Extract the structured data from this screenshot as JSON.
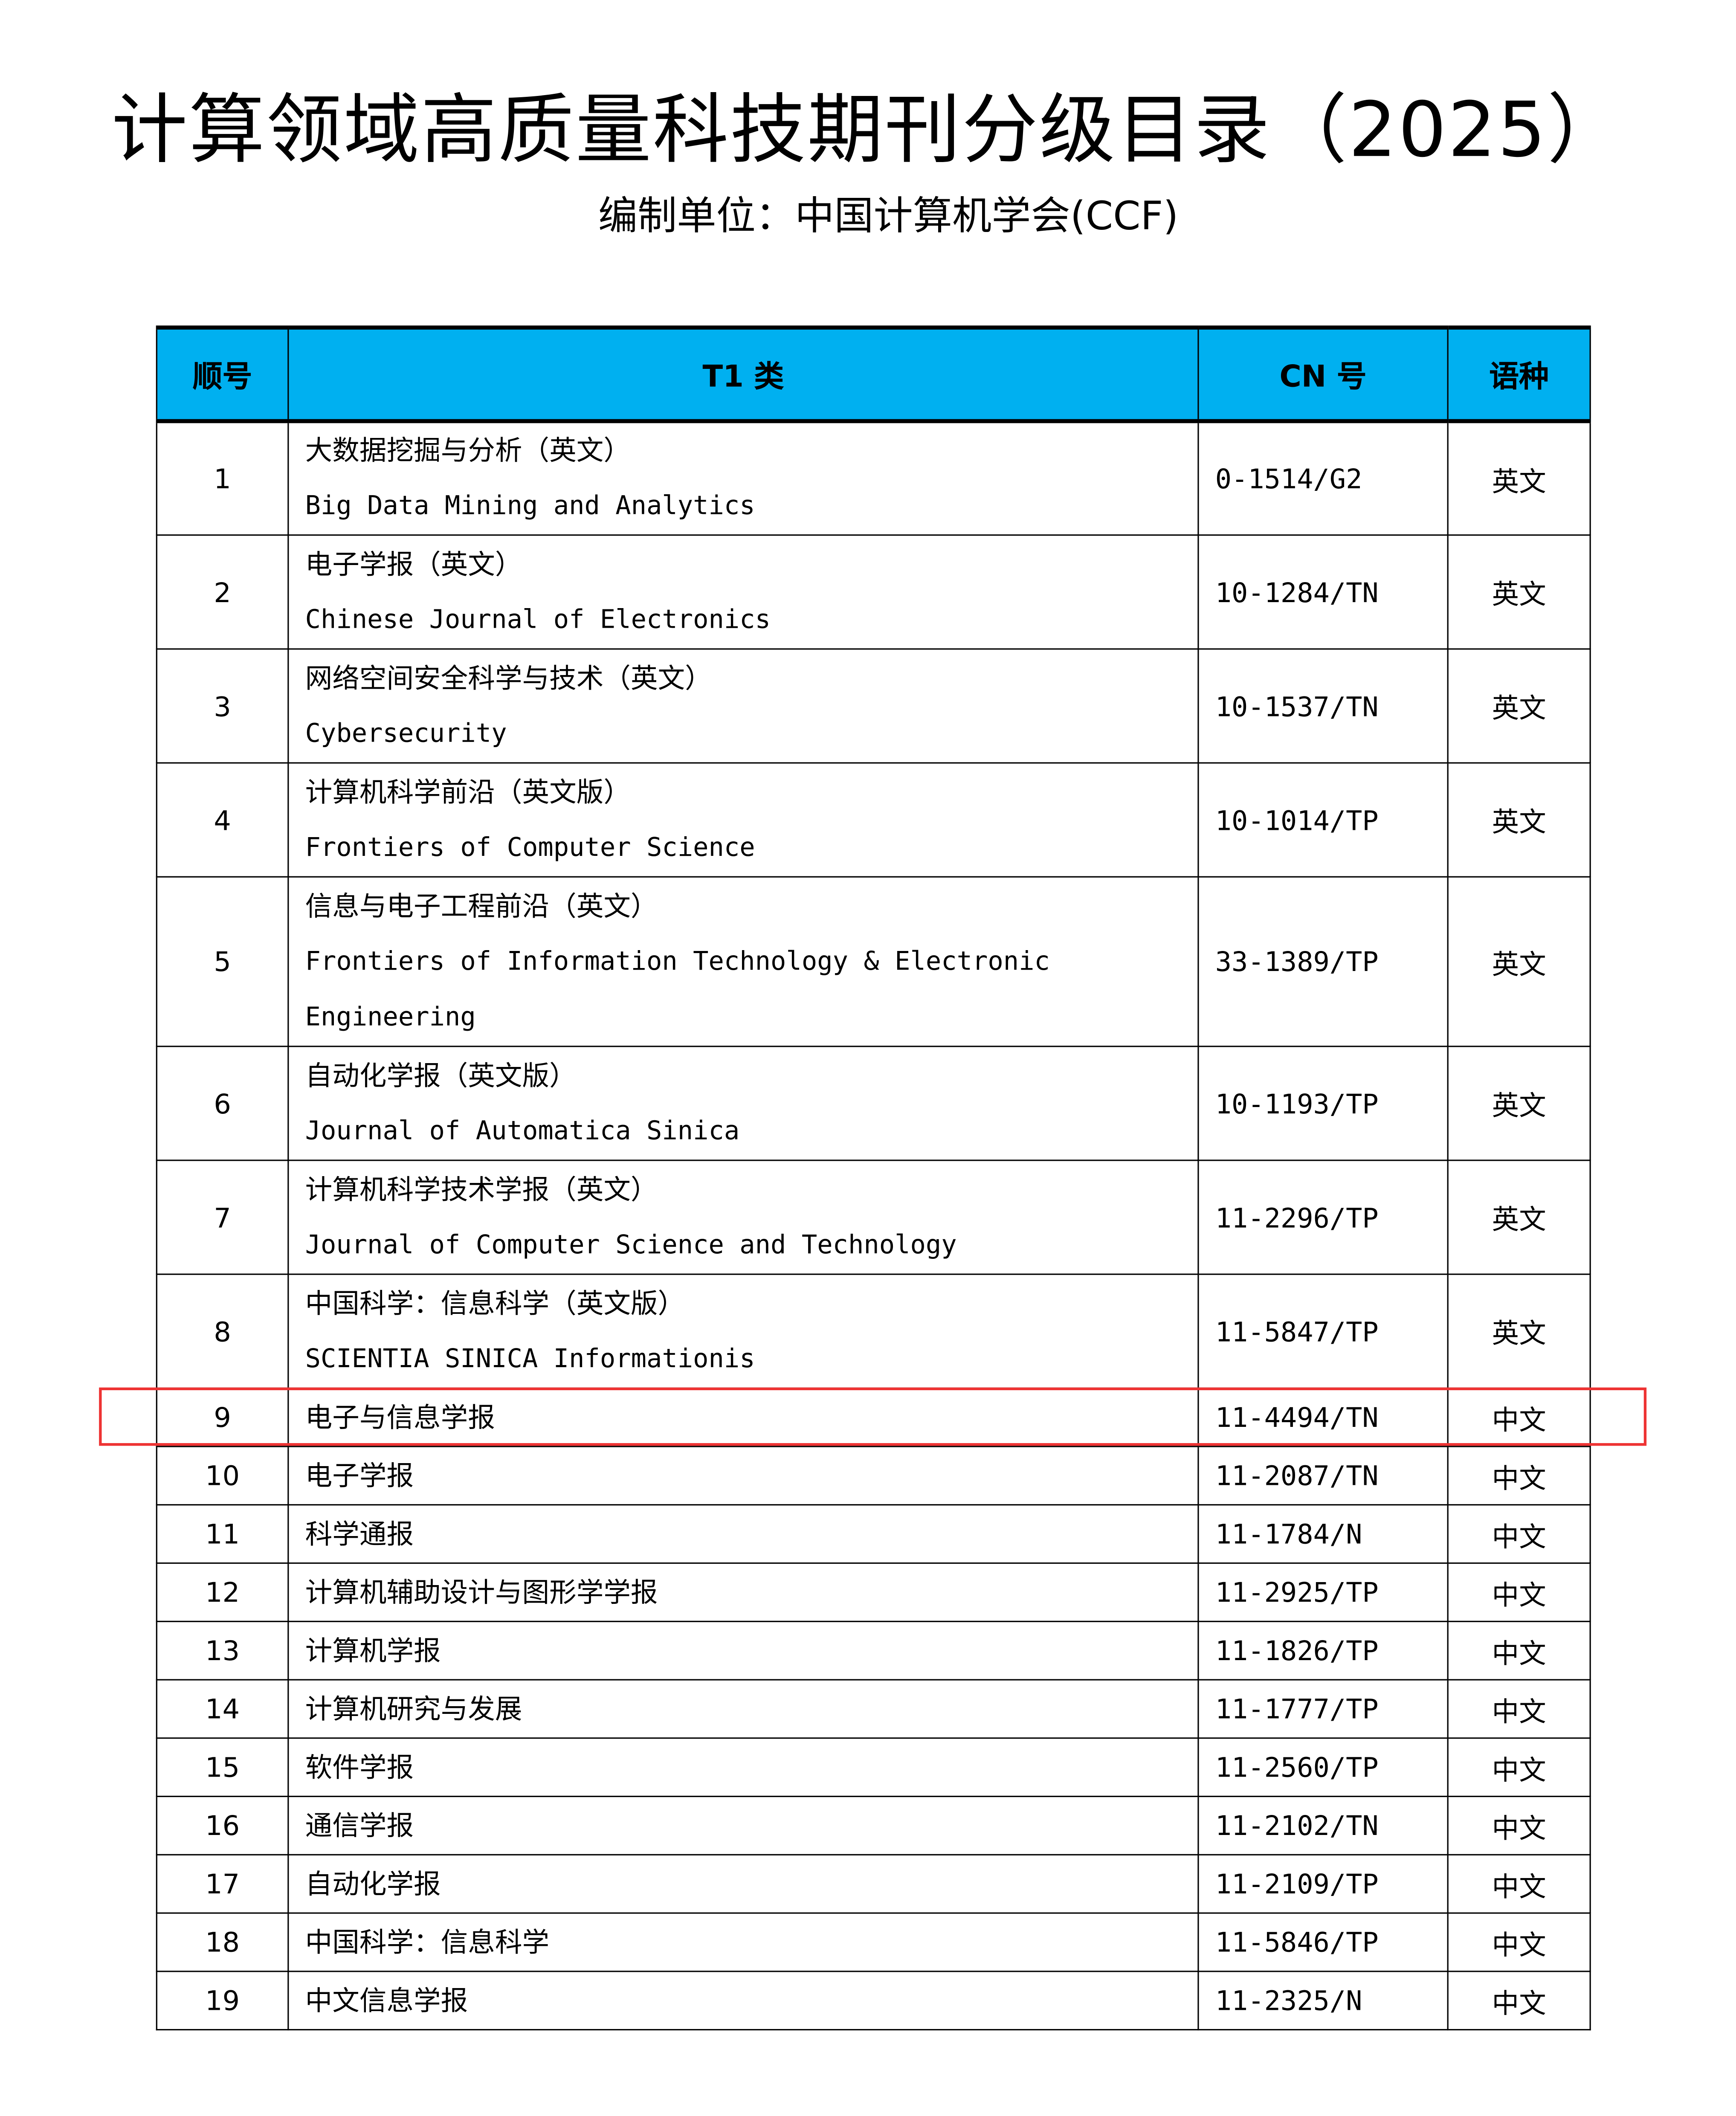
{
  "title": "计算领域高质量科技期刊分级目录（2025）",
  "subtitle": "编制单位：中国计算机学会(CCF)",
  "table": {
    "header_color": "#00b0f0",
    "columns": [
      "顺号",
      "T1 类",
      "CN 号",
      "语种"
    ],
    "highlight_color": "#ee3333",
    "highlighted_row": "9",
    "rows": [
      {
        "no": "1",
        "zh": "大数据挖掘与分析（英文）",
        "en": "Big Data Mining and Analytics",
        "cn": "0-1514/G2",
        "lang": "英文"
      },
      {
        "no": "2",
        "zh": "电子学报（英文）",
        "en": "Chinese Journal of Electronics",
        "cn": "10-1284/TN",
        "lang": "英文"
      },
      {
        "no": "3",
        "zh": "网络空间安全科学与技术（英文）",
        "en": "Cybersecurity",
        "cn": "10-1537/TN",
        "lang": "英文"
      },
      {
        "no": "4",
        "zh": "计算机科学前沿（英文版）",
        "en": "Frontiers of Computer Science",
        "cn": "10-1014/TP",
        "lang": "英文"
      },
      {
        "no": "5",
        "zh": "信息与电子工程前沿（英文）",
        "en": "Frontiers of Information Technology & Electronic Engineering",
        "cn": "33-1389/TP",
        "lang": "英文"
      },
      {
        "no": "6",
        "zh": "自动化学报（英文版）",
        "en": "Journal of Automatica Sinica",
        "cn": "10-1193/TP",
        "lang": "英文"
      },
      {
        "no": "7",
        "zh": "计算机科学技术学报（英文）",
        "en": "Journal of Computer Science and Technology",
        "cn": "11-2296/TP",
        "lang": "英文"
      },
      {
        "no": "8",
        "zh": "中国科学：信息科学（英文版）",
        "en": "SCIENTIA SINICA Informationis",
        "cn": "11-5847/TP",
        "lang": "英文"
      },
      {
        "no": "9",
        "zh": "电子与信息学报",
        "cn": "11-4494/TN",
        "lang": "中文"
      },
      {
        "no": "10",
        "zh": "电子学报",
        "cn": "11-2087/TN",
        "lang": "中文"
      },
      {
        "no": "11",
        "zh": "科学通报",
        "cn": "11-1784/N",
        "lang": "中文"
      },
      {
        "no": "12",
        "zh": "计算机辅助设计与图形学学报",
        "cn": "11-2925/TP",
        "lang": "中文"
      },
      {
        "no": "13",
        "zh": "计算机学报",
        "cn": "11-1826/TP",
        "lang": "中文"
      },
      {
        "no": "14",
        "zh": "计算机研究与发展",
        "cn": "11-1777/TP",
        "lang": "中文"
      },
      {
        "no": "15",
        "zh": "软件学报",
        "cn": "11-2560/TP",
        "lang": "中文"
      },
      {
        "no": "16",
        "zh": "通信学报",
        "cn": "11-2102/TN",
        "lang": "中文"
      },
      {
        "no": "17",
        "zh": "自动化学报",
        "cn": "11-2109/TP",
        "lang": "中文"
      },
      {
        "no": "18",
        "zh": "中国科学：信息科学",
        "cn": "11-5846/TP",
        "lang": "中文"
      },
      {
        "no": "19",
        "zh": "中文信息学报",
        "cn": "11-2325/N",
        "lang": "中文"
      }
    ]
  }
}
